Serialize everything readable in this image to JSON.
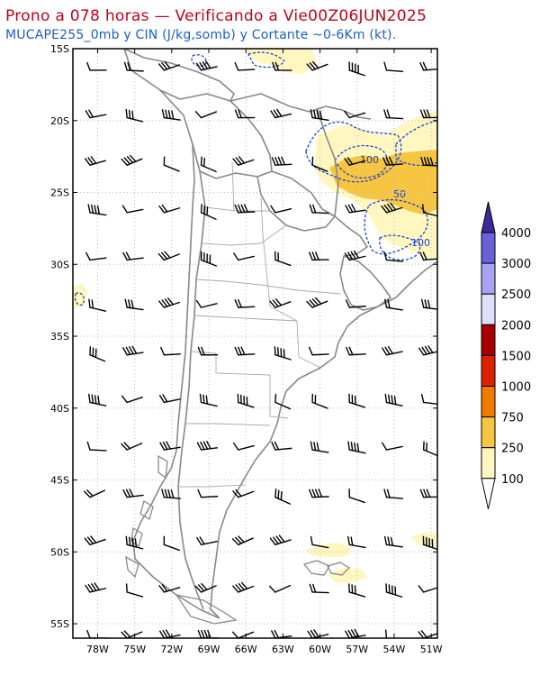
{
  "title": "Prono a 078 horas — Verificando a Vie00Z06JUN2025",
  "subtitle": "MUCAPE255_0mb y CIN (J/kg,somb) y Cortante ~0-6Km (kt).",
  "lat_labels": [
    "15S",
    "20S",
    "25S",
    "30S",
    "35S",
    "40S",
    "45S",
    "50S",
    "55S"
  ],
  "lon_labels": [
    "78W",
    "75W",
    "72W",
    "69W",
    "66W",
    "63W",
    "60W",
    "57W",
    "54W",
    "51W"
  ],
  "colorbar": {
    "labels": [
      "100",
      "250",
      "750",
      "1000",
      "1500",
      "2000",
      "2500",
      "3000",
      "4000"
    ],
    "colors": [
      "#fff6c0",
      "#f6c542",
      "#f07a00",
      "#dd2200",
      "#a80000",
      "#dee0fa",
      "#a8a4f2",
      "#6a60d8",
      "#3a2a9a"
    ]
  },
  "cin_labels": [
    "100",
    "50",
    "100"
  ],
  "colors": {
    "title": "#c0001a",
    "subtitle": "#1a5fc8",
    "cin": "#1a3fd0",
    "border": "#808080"
  },
  "chart_data": {
    "type": "heatmap",
    "title": "Prono a 078 horas — Verificando a Vie00Z06JUN2025",
    "subtitle": "MUCAPE255_0mb y CIN (J/kg,somb) y Cortante ~0-6Km (kt).",
    "x_ticks": [
      "78W",
      "75W",
      "72W",
      "69W",
      "66W",
      "63W",
      "60W",
      "57W",
      "54W",
      "51W"
    ],
    "y_ticks": [
      "15S",
      "20S",
      "25S",
      "30S",
      "35S",
      "40S",
      "45S",
      "50S",
      "55S"
    ],
    "xlim": [
      -80,
      -50.5
    ],
    "ylim": [
      -56,
      -15
    ],
    "legend_levels": [
      100,
      250,
      750,
      1000,
      1500,
      2000,
      2500,
      3000,
      4000
    ],
    "cin_contour_labels": [
      100,
      50,
      100
    ],
    "grid": true,
    "legend": "right"
  }
}
